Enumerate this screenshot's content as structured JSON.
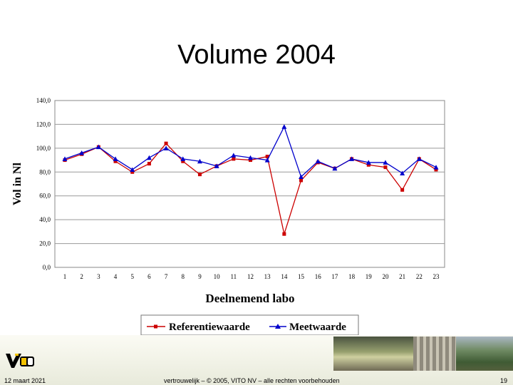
{
  "slide": {
    "title": "Volume 2004",
    "footer_date": "12 maart 2021",
    "footer_copyright": "vertrouwelijk – © 2005, VITO NV – alle rechten voorbehouden",
    "page_number": "19"
  },
  "logo": {
    "text": "vito"
  },
  "chart_data": {
    "type": "line",
    "title": "",
    "xlabel": "Deelnemend labo",
    "ylabel": "Vol in Nl",
    "categories": [
      "1",
      "2",
      "3",
      "4",
      "5",
      "6",
      "7",
      "8",
      "9",
      "10",
      "11",
      "12",
      "13",
      "14",
      "15",
      "16",
      "17",
      "18",
      "19",
      "20",
      "21",
      "22",
      "23"
    ],
    "ylim": [
      0,
      140
    ],
    "yticks": [
      "0,0",
      "20,0",
      "40,0",
      "60,0",
      "80,0",
      "100,0",
      "120,0",
      "140,0"
    ],
    "ytick_values": [
      0,
      20,
      40,
      60,
      80,
      100,
      120,
      140
    ],
    "grid": "horizontal",
    "legend_position": "bottom",
    "series": [
      {
        "name": "Referentiewaarde",
        "color": "#cc0000",
        "marker": "square",
        "values": [
          90,
          95,
          101,
          89,
          80,
          87,
          104,
          89,
          78,
          85,
          91,
          90,
          93,
          28,
          73,
          88,
          83,
          91,
          86,
          84,
          65,
          91,
          82
        ]
      },
      {
        "name": "Meetwaarde",
        "color": "#0000cc",
        "marker": "triangle",
        "values": [
          91,
          96,
          101,
          91,
          82,
          92,
          100,
          91,
          89,
          85,
          94,
          92,
          90,
          118,
          76,
          89,
          83,
          91,
          88,
          88,
          79,
          91,
          84
        ]
      }
    ]
  }
}
